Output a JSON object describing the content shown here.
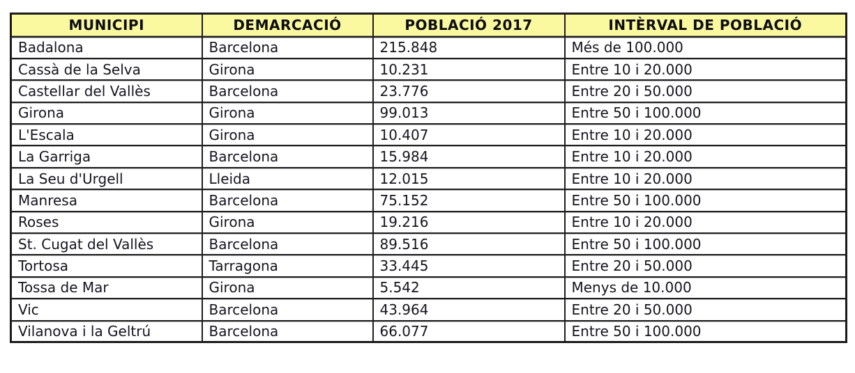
{
  "table": {
    "title": "municipis-poblacio-table",
    "header_bg": "#faf9a0",
    "border_color": "#1b1b1b",
    "text_color": "#14141e",
    "columns": [
      {
        "key": "municipi",
        "label": "MUNICIPI"
      },
      {
        "key": "demarcacio",
        "label": "DEMARCACIÓ"
      },
      {
        "key": "poblacio",
        "label": "POBLACIÓ 2017"
      },
      {
        "key": "interval",
        "label": "INTÈRVAL DE POBLACIÓ"
      }
    ],
    "rows": [
      [
        "Badalona",
        "Barcelona",
        "215.848",
        "Més de 100.000"
      ],
      [
        "Cassà de la Selva",
        "Girona",
        "10.231",
        "Entre 10 i 20.000"
      ],
      [
        "Castellar del Vallès",
        "Barcelona",
        "23.776",
        "Entre 20 i 50.000"
      ],
      [
        "Girona",
        "Girona",
        "99.013",
        "Entre 50 i 100.000"
      ],
      [
        "L'Escala",
        "Girona",
        "10.407",
        "Entre 10 i 20.000"
      ],
      [
        "La Garriga",
        "Barcelona",
        "15.984",
        "Entre 10 i 20.000"
      ],
      [
        "La Seu d'Urgell",
        "Lleida",
        "12.015",
        "Entre 10 i 20.000"
      ],
      [
        "Manresa",
        "Barcelona",
        "75.152",
        "Entre 50 i 100.000"
      ],
      [
        "Roses",
        "Girona",
        "19.216",
        "Entre 10 i 20.000"
      ],
      [
        "St. Cugat del Vallès",
        "Barcelona",
        "89.516",
        "Entre 50 i 100.000"
      ],
      [
        "Tortosa",
        "Tarragona",
        "33.445",
        "Entre 20 i 50.000"
      ],
      [
        "Tossa de Mar",
        "Girona",
        "5.542",
        "Menys de 10.000"
      ],
      [
        "Vic",
        "Barcelona",
        "43.964",
        "Entre 20 i 50.000"
      ],
      [
        "Vilanova i la Geltrú",
        "Barcelona",
        "66.077",
        "Entre 50 i 100.000"
      ]
    ]
  }
}
